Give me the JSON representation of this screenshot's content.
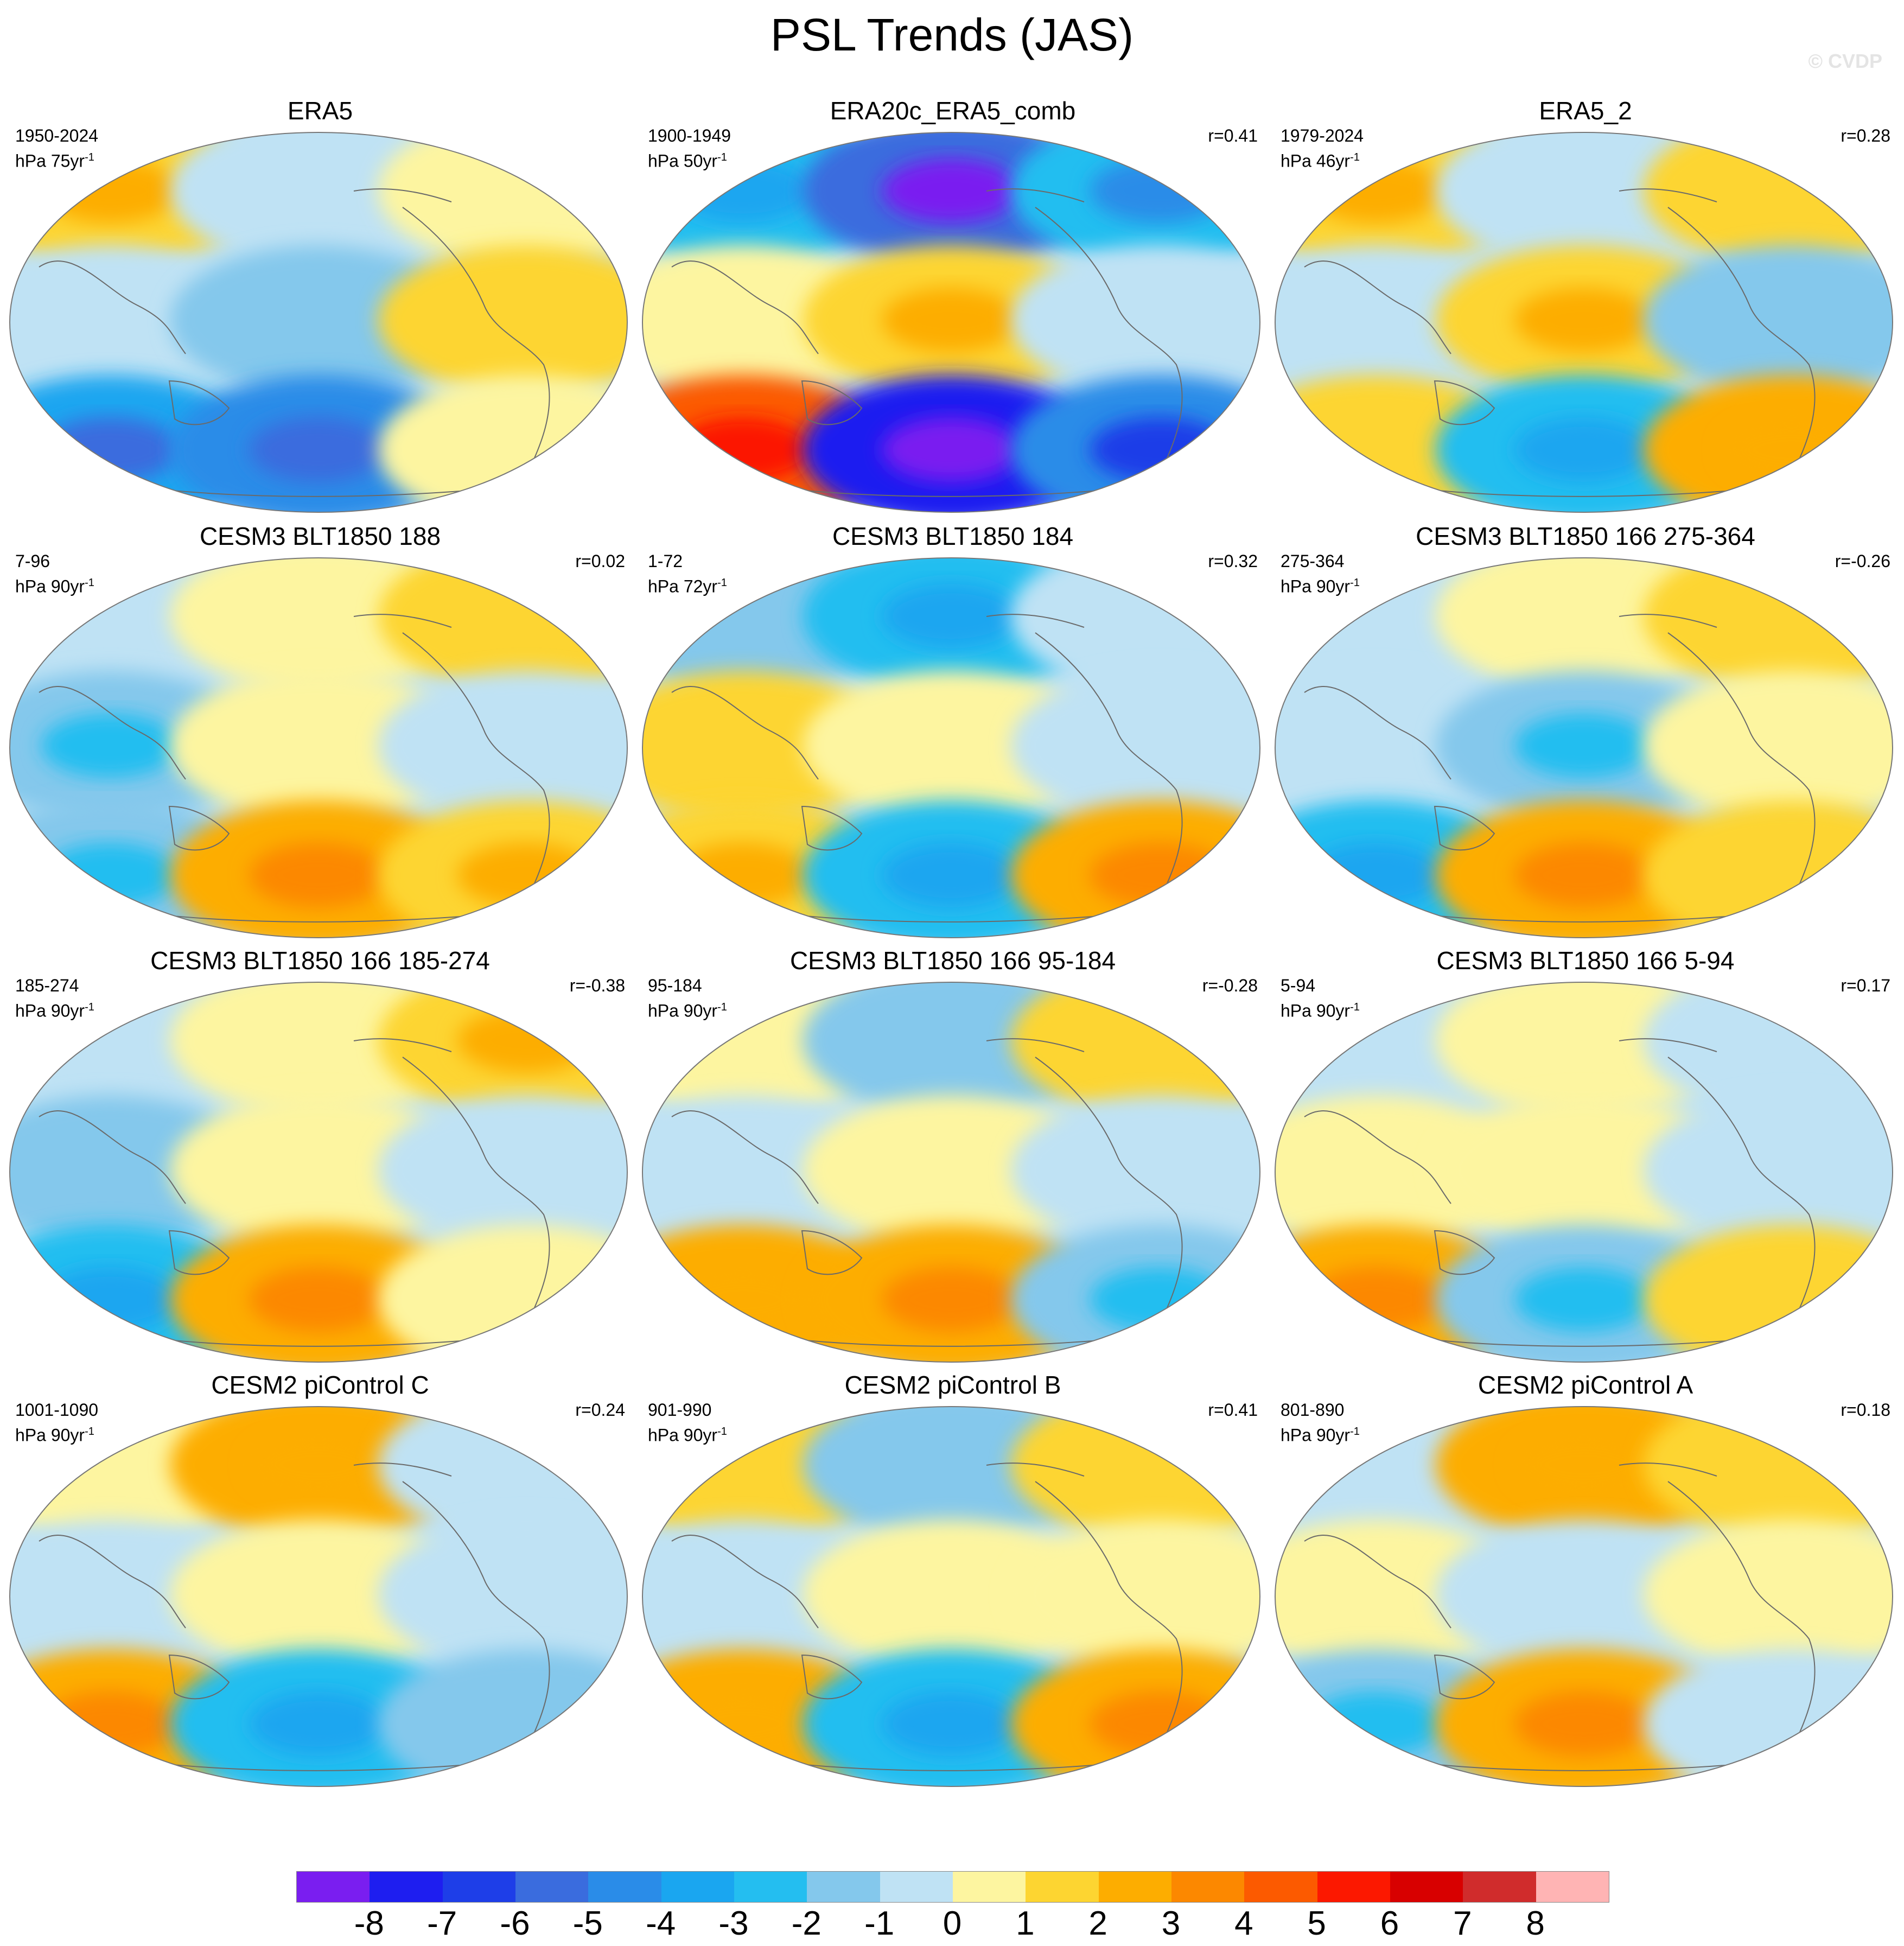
{
  "title": "PSL Trends (JAS)",
  "watermark": "© CVDP",
  "units_base": "hPa",
  "units_exp": "-1",
  "panels": [
    {
      "title": "ERA5",
      "period": "1950-2024",
      "units": "hPa 75yr",
      "corr": "",
      "pattern": [
        1.6,
        -0.2,
        0.8,
        -0.6,
        -1.2,
        1.2,
        -3.6,
        -4.2,
        0.5
      ]
    },
    {
      "title": "ERA20c_ERA5_comb",
      "period": "1900-1949",
      "units": "hPa 50yr",
      "corr": "r=0.41",
      "pattern": [
        -2.8,
        -6.0,
        -3.0,
        0.6,
        1.8,
        -0.4,
        4.0,
        -8.0,
        -5.0
      ]
    },
    {
      "title": "ERA5_2",
      "period": "1979-2024",
      "units": "hPa 46yr",
      "corr": "r=0.28",
      "pattern": [
        1.5,
        -0.8,
        1.0,
        -0.5,
        1.6,
        -1.2,
        1.4,
        -2.2,
        2.0
      ]
    },
    {
      "title": "CESM3 BLT1850 188",
      "period": "7-96",
      "units": "hPa 90yr",
      "corr": "r=0.02",
      "pattern": [
        -0.5,
        0.4,
        1.2,
        -1.5,
        0.6,
        -0.4,
        -2.0,
        2.4,
        1.6
      ]
    },
    {
      "title": "CESM3 BLT1850 184",
      "period": "1-72",
      "units": "hPa 72yr",
      "corr": "r=0.32",
      "pattern": [
        -1.2,
        -2.4,
        -0.6,
        1.0,
        0.6,
        -0.6,
        1.5,
        -2.8,
        2.2
      ]
    },
    {
      "title": "CESM3 BLT1850 166 275-364",
      "period": "275-364",
      "units": "hPa 90yr",
      "corr": "r=-0.26",
      "pattern": [
        -0.6,
        0.5,
        1.4,
        -0.8,
        -1.6,
        0.6,
        -2.6,
        2.4,
        1.2
      ]
    },
    {
      "title": "CESM3 BLT1850 166 185-274",
      "period": "185-274",
      "units": "hPa 90yr",
      "corr": "r=-0.38",
      "pattern": [
        -1.0,
        0.6,
        1.6,
        -1.4,
        0.6,
        -0.8,
        -2.2,
        2.2,
        0.8
      ]
    },
    {
      "title": "CESM3 BLT1850 166 95-184",
      "period": "95-184",
      "units": "hPa 90yr",
      "corr": "r=-0.28",
      "pattern": [
        0.6,
        -1.4,
        1.2,
        -0.4,
        0.5,
        -0.6,
        2.0,
        2.2,
        -1.6
      ]
    },
    {
      "title": "CESM3 BLT1850 166 5-94",
      "period": "5-94",
      "units": "hPa 90yr",
      "corr": "r=0.17",
      "pattern": [
        -0.4,
        0.8,
        -0.8,
        0.6,
        0.4,
        -0.4,
        2.6,
        -2.0,
        1.2
      ]
    },
    {
      "title": "CESM2 piControl C",
      "period": "1001-1090",
      "units": "hPa 90yr",
      "corr": "r=0.24",
      "pattern": [
        0.5,
        2.0,
        -0.6,
        -0.6,
        0.6,
        -0.4,
        2.2,
        -2.8,
        -1.4
      ]
    },
    {
      "title": "CESM2 piControl B",
      "period": "901-990",
      "units": "hPa 90yr",
      "corr": "r=0.41",
      "pattern": [
        1.2,
        -1.2,
        1.4,
        -0.6,
        0.5,
        0.5,
        2.0,
        -2.2,
        2.4
      ]
    },
    {
      "title": "CESM2 piControl A",
      "period": "801-890",
      "units": "hPa 90yr",
      "corr": "r=0.18",
      "pattern": [
        -0.6,
        2.0,
        1.0,
        0.5,
        -0.6,
        0.5,
        -1.6,
        2.2,
        -0.6
      ]
    }
  ],
  "colorbar": {
    "colors": [
      "#7a1ef0",
      "#1e1ef0",
      "#1e3ee8",
      "#3a6cde",
      "#2a8ce8",
      "#1aa6f0",
      "#24bef0",
      "#84c8ec",
      "#bfe2f4",
      "#fdf5a0",
      "#fdd531",
      "#fdad00",
      "#fc8800",
      "#fc5a00",
      "#fc1800",
      "#d80000",
      "#d02c2c",
      "#ffb4b4"
    ],
    "labels": [
      "-8",
      "-7",
      "-6",
      "-5",
      "-4",
      "-3",
      "-2",
      "-1",
      "0",
      "1",
      "2",
      "3",
      "4",
      "5",
      "6",
      "7",
      "8"
    ]
  }
}
